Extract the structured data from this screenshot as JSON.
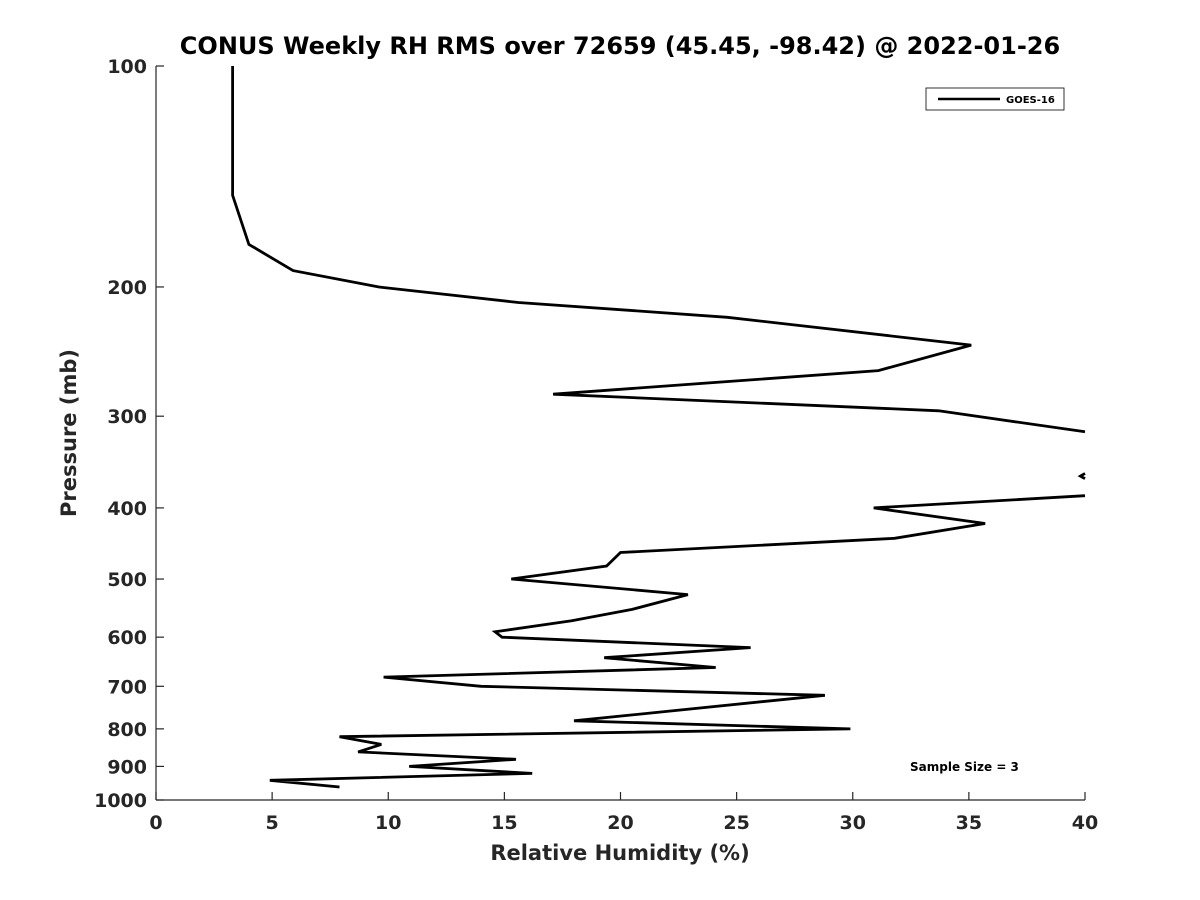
{
  "chart_data": {
    "type": "line",
    "title": "CONUS Weekly RH RMS over 72659 (45.45, -98.42) @ 2022-01-26",
    "xlabel": "Relative Humidity (%)",
    "ylabel": "Pressure (mb)",
    "xlim": [
      0,
      40
    ],
    "ylim": [
      100,
      1000
    ],
    "y_scale": "log",
    "y_reversed": true,
    "x_ticks": [
      0,
      5,
      10,
      15,
      20,
      25,
      30,
      35,
      40
    ],
    "y_ticks": [
      100,
      200,
      300,
      400,
      500,
      600,
      700,
      800,
      900,
      1000
    ],
    "grid": false,
    "legend_position": "top-right",
    "series": [
      {
        "name": "GOES-16",
        "color": "#000000",
        "segments": [
          {
            "x": [
              3.3,
              3.3,
              3.3,
              4.0,
              5.9,
              9.6,
              15.6,
              24.6,
              35.1,
              31.1,
              17.1,
              33.7,
              40.0
            ],
            "y": [
              100,
              125,
              150,
              175,
              190,
              200,
              210,
              220,
              240,
              260,
              280,
              295,
              315
            ]
          },
          {
            "x": [
              40.0,
              39.8,
              40.0
            ],
            "y": [
              359,
              362,
              365
            ]
          },
          {
            "x": [
              40.0,
              30.9,
              35.7,
              31.8,
              20.0,
              19.4,
              15.3,
              22.9,
              20.5,
              17.9,
              14.6,
              14.9,
              25.6,
              19.3,
              24.1,
              9.8,
              14.0,
              28.8,
              18.0,
              29.9,
              7.9,
              9.7,
              8.7,
              15.5,
              10.9,
              16.2,
              4.9,
              7.9
            ],
            "y": [
              385,
              400,
              420,
              440,
              460,
              480,
              500,
              525,
              550,
              570,
              590,
              600,
              620,
              640,
              660,
              680,
              700,
              720,
              780,
              800,
              820,
              840,
              860,
              880,
              900,
              920,
              940,
              960
            ]
          }
        ]
      }
    ],
    "annotations": [
      "Sample Size = 3"
    ]
  }
}
